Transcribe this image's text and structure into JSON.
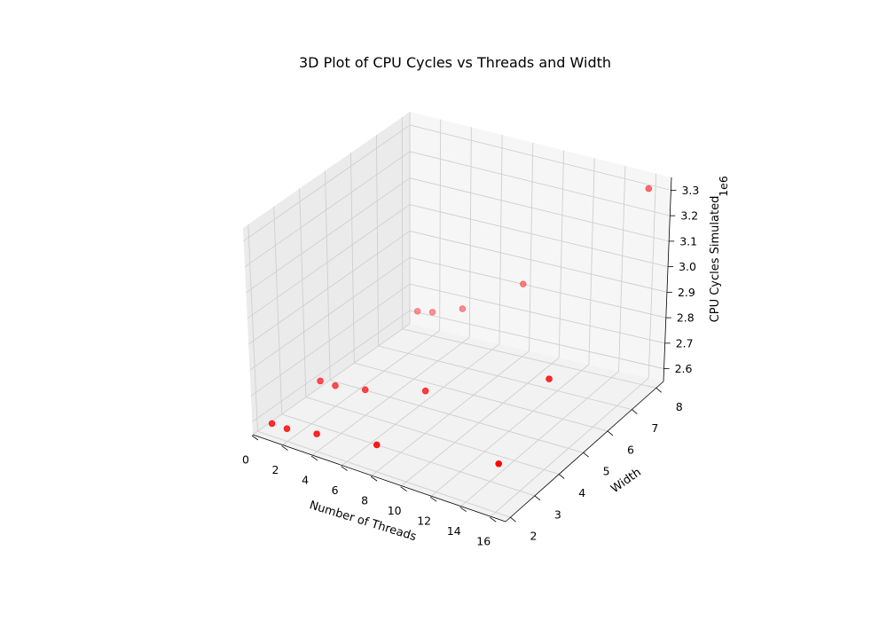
{
  "chart_data": {
    "type": "scatter3d",
    "title": "3D Plot of CPU Cycles vs Threads and Width",
    "xlabel": "Number of Threads",
    "ylabel": "Width",
    "zlabel": "CPU Cycles Simulated",
    "z_offset_label": "1e6",
    "xlim": [
      0,
      17
    ],
    "ylim": [
      1.8,
      8.3
    ],
    "zlim": [
      2.55,
      3.35
    ],
    "x_ticks": [
      "0",
      "2",
      "4",
      "6",
      "8",
      "10",
      "12",
      "14",
      "16"
    ],
    "y_ticks": [
      "2",
      "3",
      "4",
      "5",
      "6",
      "7",
      "8"
    ],
    "z_ticks": [
      "2.6",
      "2.7",
      "2.8",
      "2.9",
      "3.0",
      "3.1",
      "3.2",
      "3.3"
    ],
    "grid": true,
    "marker_color": "#ff0000",
    "points": [
      {
        "x": 1,
        "y": 2,
        "z": 2.6
      },
      {
        "x": 2,
        "y": 2,
        "z": 2.6
      },
      {
        "x": 4,
        "y": 2,
        "z": 2.62
      },
      {
        "x": 8,
        "y": 2,
        "z": 2.66
      },
      {
        "x": 16,
        "y": 2,
        "z": 2.76
      },
      {
        "x": 1,
        "y": 4,
        "z": 2.63
      },
      {
        "x": 2,
        "y": 4,
        "z": 2.63
      },
      {
        "x": 4,
        "y": 4,
        "z": 2.65
      },
      {
        "x": 8,
        "y": 4,
        "z": 2.72
      },
      {
        "x": 16,
        "y": 4,
        "z": 2.93
      },
      {
        "x": 1,
        "y": 8,
        "z": 2.63
      },
      {
        "x": 2,
        "y": 8,
        "z": 2.64
      },
      {
        "x": 4,
        "y": 8,
        "z": 2.68
      },
      {
        "x": 8,
        "y": 8,
        "z": 2.83
      },
      {
        "x": 16,
        "y": 8,
        "z": 3.32
      }
    ]
  }
}
